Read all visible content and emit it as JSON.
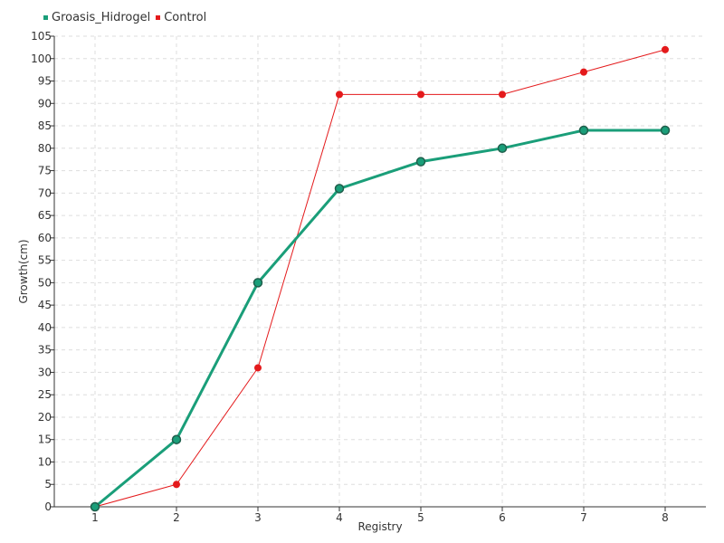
{
  "chart_data": {
    "type": "line",
    "title": "",
    "xlabel": "Registry",
    "ylabel": "Growth(cm)",
    "categories": [
      "1",
      "2",
      "3",
      "4",
      "5",
      "6",
      "7",
      "8"
    ],
    "x": [
      1,
      2,
      3,
      4,
      5,
      6,
      7,
      8
    ],
    "xlim": [
      0.5,
      8.5
    ],
    "ylim": [
      0,
      105
    ],
    "ytick_step": 5,
    "grid": true,
    "legend_position": "top-left",
    "series": [
      {
        "name": "Groasis_Hidrogel",
        "color": "#1a9e79",
        "values": [
          0,
          15,
          50,
          71,
          77,
          80,
          84,
          84
        ]
      },
      {
        "name": "Control",
        "color": "#e41a1c",
        "values": [
          0,
          5,
          31,
          92,
          92,
          92,
          97,
          102
        ]
      }
    ]
  }
}
